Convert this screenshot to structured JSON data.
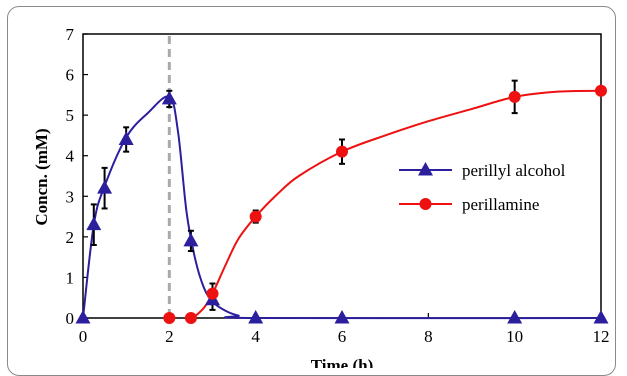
{
  "chart_data": {
    "type": "line",
    "xlabel": "Time (h)",
    "ylabel": "Concn. (mM)",
    "xlim": [
      0,
      12
    ],
    "ylim": [
      0,
      7
    ],
    "x_ticks": [
      0,
      2,
      4,
      6,
      8,
      10,
      12
    ],
    "y_ticks": [
      0,
      1,
      2,
      3,
      4,
      5,
      6,
      7
    ],
    "grid": false,
    "legend_position": "right",
    "reference_line": {
      "x": 2,
      "style": "dashed",
      "color": "#aaaaaa"
    },
    "series": [
      {
        "name": "perillyl alcohol",
        "color": "#2b1f9e",
        "marker": "triangle",
        "x": [
          0,
          0.25,
          0.5,
          1,
          2,
          2.5,
          3,
          4,
          6,
          10,
          12
        ],
        "y": [
          0,
          2.3,
          3.2,
          4.4,
          5.4,
          1.9,
          0.45,
          0,
          0,
          0,
          0
        ],
        "error": [
          0,
          0.5,
          0.5,
          0.3,
          0.2,
          0.25,
          0.25,
          0,
          0,
          0,
          0
        ],
        "curve": [
          [
            0,
            0
          ],
          [
            0.25,
            2.3
          ],
          [
            0.5,
            3.25
          ],
          [
            1,
            4.45
          ],
          [
            1.5,
            5.05
          ],
          [
            2,
            5.45
          ],
          [
            2.2,
            4.6
          ],
          [
            2.4,
            2.6
          ],
          [
            2.6,
            1.45
          ],
          [
            2.8,
            0.75
          ],
          [
            3,
            0.4
          ],
          [
            3.3,
            0.18
          ],
          [
            3.6,
            0.06
          ],
          [
            4,
            0
          ],
          [
            12,
            0
          ]
        ]
      },
      {
        "name": "perillamine",
        "color": "#ee1111",
        "marker": "circle",
        "x": [
          2,
          2.5,
          3,
          4,
          6,
          10,
          12
        ],
        "y": [
          0,
          0,
          0.6,
          2.5,
          4.1,
          5.45,
          5.6
        ],
        "error": [
          0,
          0,
          0.25,
          0.15,
          0.3,
          0.4,
          0
        ],
        "curve": [
          [
            2.55,
            0
          ],
          [
            2.8,
            0.25
          ],
          [
            3,
            0.6
          ],
          [
            3.3,
            1.3
          ],
          [
            3.6,
            1.95
          ],
          [
            4,
            2.5
          ],
          [
            4.5,
            3.05
          ],
          [
            5,
            3.5
          ],
          [
            6,
            4.1
          ],
          [
            7,
            4.5
          ],
          [
            8,
            4.85
          ],
          [
            9,
            5.15
          ],
          [
            10,
            5.45
          ],
          [
            11,
            5.58
          ],
          [
            12,
            5.6
          ]
        ]
      }
    ]
  }
}
